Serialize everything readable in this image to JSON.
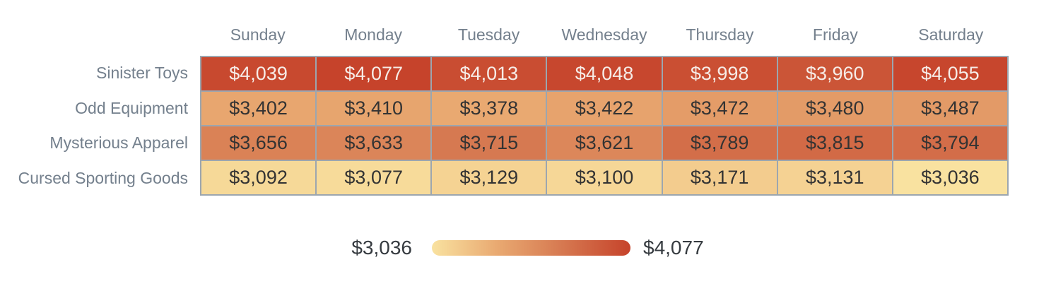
{
  "chart_data": {
    "type": "heatmap",
    "title": "",
    "columns": [
      "Sunday",
      "Monday",
      "Tuesday",
      "Wednesday",
      "Thursday",
      "Friday",
      "Saturday"
    ],
    "rows": [
      "Sinister Toys",
      "Odd Equipment",
      "Mysterious Apparel",
      "Cursed Sporting Goods"
    ],
    "series": [
      {
        "name": "Sinister Toys",
        "values": [
          4039,
          4077,
          4013,
          4048,
          3998,
          3960,
          4055
        ]
      },
      {
        "name": "Odd Equipment",
        "values": [
          3402,
          3410,
          3378,
          3422,
          3472,
          3480,
          3487
        ]
      },
      {
        "name": "Mysterious Apparel",
        "values": [
          3656,
          3633,
          3715,
          3621,
          3789,
          3815,
          3794
        ]
      },
      {
        "name": "Cursed Sporting Goods",
        "values": [
          3092,
          3077,
          3129,
          3100,
          3171,
          3131,
          3036
        ]
      }
    ],
    "value_prefix": "$",
    "min": 3036,
    "max": 4077,
    "legend": {
      "position": "bottom",
      "min_label": "$3,036",
      "max_label": "$4,077"
    },
    "colorscale": [
      {
        "stop": 0.0,
        "color": "#f9e2a0"
      },
      {
        "stop": 0.33,
        "color": "#e9a971"
      },
      {
        "stop": 0.66,
        "color": "#d67850"
      },
      {
        "stop": 1.0,
        "color": "#c6432b"
      }
    ],
    "grid_color": "#9ca6af",
    "axis_label_color": "#74808d",
    "legend_label_color": "#363b40",
    "cell_text_dark": "#333333",
    "cell_text_light": "#f6ece7",
    "light_text_threshold": 0.8
  }
}
